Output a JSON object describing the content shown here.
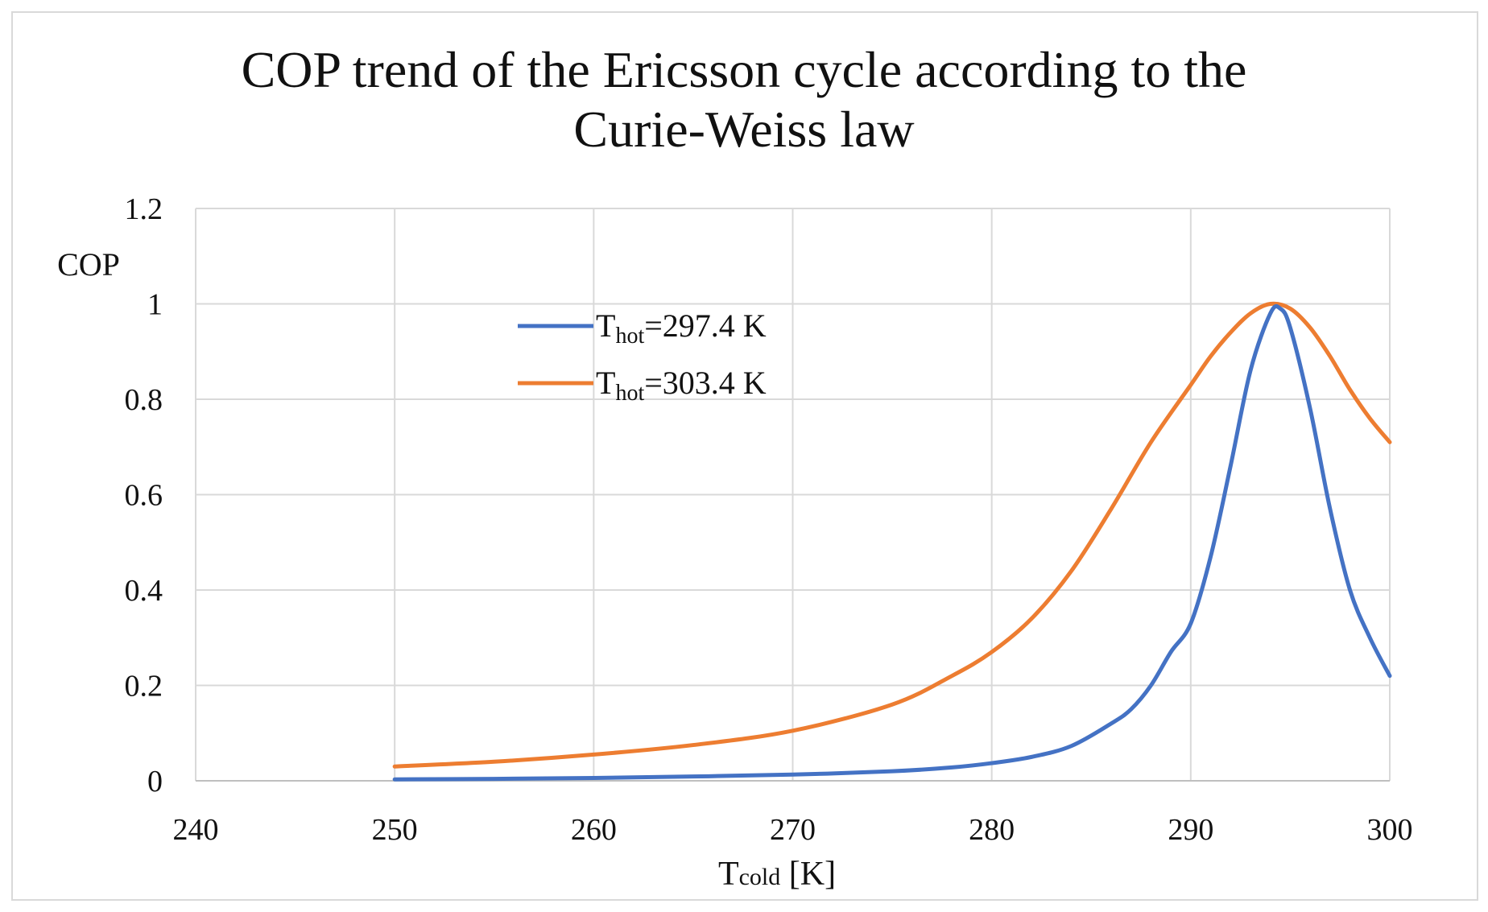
{
  "chart_data": {
    "type": "line",
    "title": [
      "COP trend of the Ericsson cycle according to the",
      "Curie-Weiss law"
    ],
    "xlabel": {
      "main": "T",
      "sub": "cold",
      "unit": " [K]"
    },
    "ylabel": "COP",
    "xlim": [
      240,
      300
    ],
    "ylim": [
      0,
      1.2
    ],
    "xticks": [
      240,
      250,
      260,
      270,
      280,
      290,
      300
    ],
    "yticks": [
      0,
      0.2,
      0.4,
      0.6,
      0.8,
      1,
      1.2
    ],
    "ytick_labels": [
      "0",
      "0.2",
      "0.4",
      "0.6",
      "0.8",
      "1",
      "1.2"
    ],
    "grid": true,
    "legend_position": "upper-left-center",
    "series": [
      {
        "name": "Thot=297.4 K",
        "label_main": "T",
        "label_sub": "hot",
        "label_rest": "=297.4 K",
        "color": "#4472C4",
        "x": [
          250,
          255,
          260,
          265,
          270,
          275,
          278,
          280,
          282,
          284,
          286,
          287,
          288,
          289,
          290,
          291,
          292,
          293,
          294,
          294.5,
          295,
          296,
          297,
          298,
          299,
          300
        ],
        "y": [
          0.003,
          0.004,
          0.006,
          0.009,
          0.013,
          0.02,
          0.028,
          0.037,
          0.05,
          0.073,
          0.12,
          0.15,
          0.2,
          0.27,
          0.33,
          0.47,
          0.66,
          0.86,
          0.98,
          0.99,
          0.95,
          0.78,
          0.57,
          0.4,
          0.3,
          0.22
        ]
      },
      {
        "name": "Thot=303.4 K",
        "label_main": "T",
        "label_sub": "hot",
        "label_rest": "=303.4 K",
        "color": "#ED7D31",
        "x": [
          250,
          255,
          260,
          265,
          270,
          275,
          278,
          280,
          282,
          284,
          286,
          288,
          290,
          291,
          292,
          293,
          294,
          295,
          296,
          297,
          298,
          299,
          300
        ],
        "y": [
          0.03,
          0.04,
          0.055,
          0.075,
          0.105,
          0.16,
          0.22,
          0.27,
          0.34,
          0.44,
          0.57,
          0.71,
          0.83,
          0.89,
          0.94,
          0.98,
          1.0,
          0.99,
          0.95,
          0.89,
          0.82,
          0.76,
          0.71
        ]
      }
    ]
  }
}
